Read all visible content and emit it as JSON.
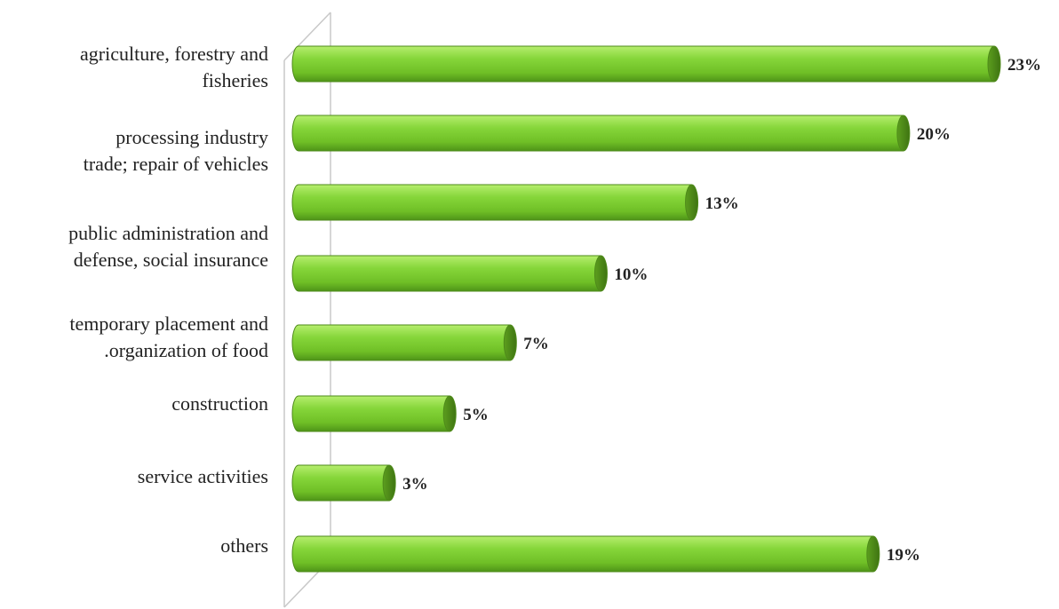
{
  "chart_data": {
    "type": "bar",
    "orientation": "horizontal",
    "style": "3d-cylinder",
    "bar_color": "#7ACC2E",
    "bar_edge_color": "#4E8A1A",
    "categories": [
      "agriculture, forestry and\nfisheries",
      "processing industry\ntrade; repair of vehicles",
      "",
      "public administration and\ndefense, social insurance",
      "temporary placement and\n.organization of food",
      "construction",
      "service activities",
      "others"
    ],
    "values": [
      23,
      20,
      13,
      10,
      7,
      5,
      3,
      19
    ],
    "value_labels": [
      "23%",
      "20%",
      "13%",
      "10%",
      "7%",
      "5%",
      "3%",
      "19%"
    ],
    "xlim": [
      0,
      24
    ],
    "title": "",
    "xlabel": "",
    "ylabel": "",
    "grid": false,
    "legend": "none"
  }
}
